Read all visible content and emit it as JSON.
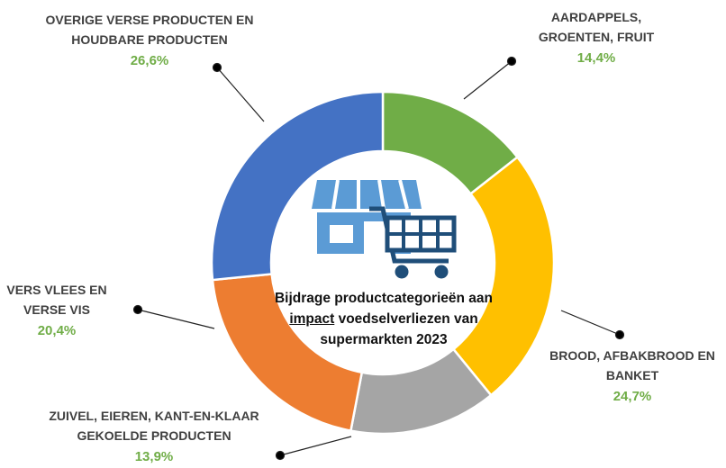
{
  "chart_data": {
    "type": "donut",
    "title": [
      "Bijdrage productcategorieën aan",
      "impact",
      "voedselverliezen van supermarkten 2023"
    ],
    "categories": [
      "AARDAPPELS, GROENTEN, FRUIT",
      "BROOD, AFBAKBROOD EN BANKET",
      "ZUIVEL, EIEREN, KANT-EN-KLAAR GEKOELDE PRODUCTEN",
      "VERS VLEES EN VERSE VIS",
      "OVERIGE VERSE PRODUCTEN EN HOUDBARE PRODUCTEN"
    ],
    "values": [
      14.4,
      24.7,
      13.9,
      20.4,
      26.6
    ],
    "value_labels": [
      "14,4%",
      "24,7%",
      "13,9%",
      "20,4%",
      "26,6%"
    ],
    "colors": [
      "#70ad47",
      "#ffc000",
      "#a5a5a5",
      "#ed7d31",
      "#4472c4"
    ]
  }
}
